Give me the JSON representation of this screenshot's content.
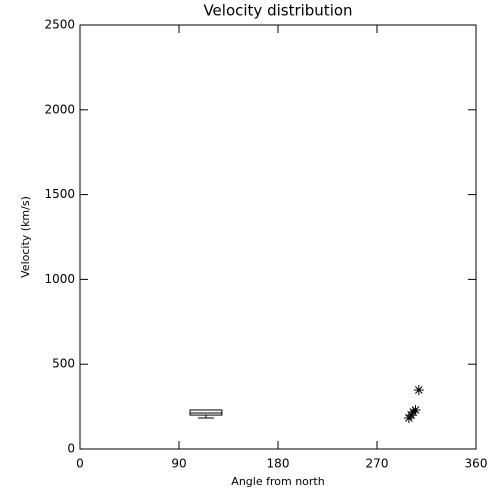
{
  "chart_data": {
    "type": "box",
    "title": "Velocity distribution",
    "xlabel": "Angle from north",
    "ylabel": "Velocity (km/s)",
    "xlim": [
      0,
      360
    ],
    "xticks": [
      0,
      90,
      180,
      270,
      360
    ],
    "ylim": [
      0,
      2500
    ],
    "yticks": [
      0,
      500,
      1000,
      1500,
      2000,
      2500
    ],
    "box": {
      "x": [
        100,
        129
      ],
      "min": 183,
      "q1": 200,
      "median": 212,
      "q3": 230,
      "max": 230
    },
    "points": {
      "x": [
        299,
        301,
        303,
        305,
        308
      ],
      "y": [
        183,
        200,
        218,
        230,
        348
      ]
    },
    "color": "#000000"
  }
}
